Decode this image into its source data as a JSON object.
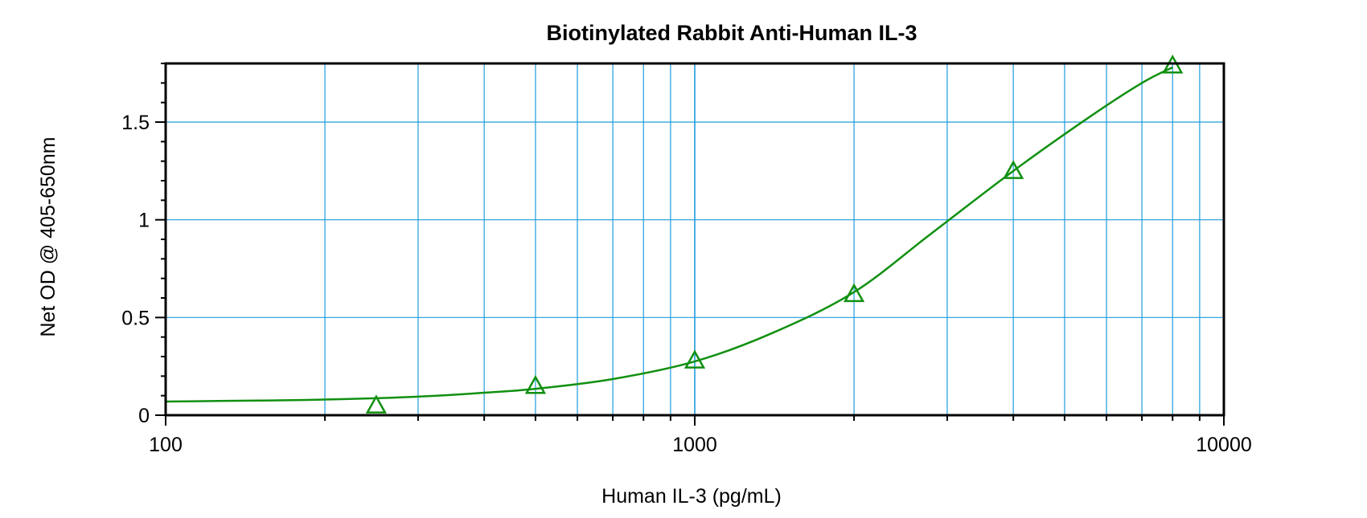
{
  "chart_data": {
    "type": "scatter",
    "title": "Biotinylated Rabbit Anti-Human IL-3",
    "xlabel": "Human IL-3 (pg/mL)",
    "ylabel": "Net OD @ 405-650nm",
    "x_scale": "log",
    "xlim": [
      100,
      10000
    ],
    "ylim": [
      0,
      1.8
    ],
    "grid": true,
    "x_ticks": [
      {
        "value": 100,
        "label": "100"
      },
      {
        "value": 1000,
        "label": "1000"
      },
      {
        "value": 10000,
        "label": "10000"
      }
    ],
    "y_ticks": [
      {
        "value": 0,
        "label": "0"
      },
      {
        "value": 0.5,
        "label": "0.5"
      },
      {
        "value": 1,
        "label": "1"
      },
      {
        "value": 1.5,
        "label": "1.5"
      }
    ],
    "series": [
      {
        "marker": "triangle",
        "color": "#119011",
        "x": [
          250,
          500,
          1000,
          2000,
          4000,
          8000
        ],
        "y": [
          0.05,
          0.15,
          0.28,
          0.62,
          1.25,
          1.79
        ]
      }
    ],
    "fit_curve": {
      "color": "#119011",
      "x": [
        100,
        150,
        200,
        300,
        400,
        500,
        700,
        1000,
        1400,
        2000,
        2800,
        4000,
        5600,
        7000,
        8000
      ],
      "y": [
        0.07,
        0.075,
        0.08,
        0.095,
        0.115,
        0.135,
        0.185,
        0.275,
        0.42,
        0.63,
        0.93,
        1.25,
        1.53,
        1.7,
        1.78
      ]
    },
    "grid_color": "#1e9ddc"
  }
}
